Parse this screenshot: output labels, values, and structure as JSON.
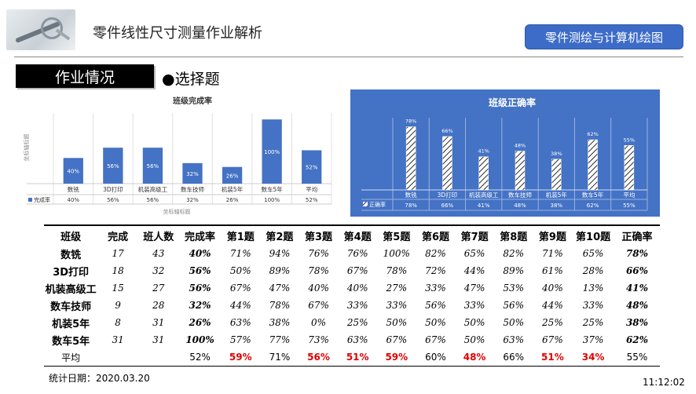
{
  "header": {
    "title": "零件线性尺寸测量作业解析",
    "brand": "零件测绘与计算机绘图"
  },
  "section": {
    "label": "作业情况",
    "subsection": "●选择题"
  },
  "chart_data": [
    {
      "type": "bar",
      "title": "班级完成率",
      "ylabel": "坐标轴标题",
      "xlabel": "坐标轴标题",
      "legend": "完成率",
      "categories": [
        "数铣",
        "3D打印",
        "机装高级工",
        "数车技师",
        "机装5年",
        "数车5年",
        "平均"
      ],
      "values": [
        40,
        56,
        56,
        32,
        26,
        100,
        52
      ],
      "labels": [
        "40%",
        "56%",
        "56%",
        "32%",
        "26%",
        "100%",
        "52%"
      ],
      "ylim": [
        0,
        110
      ],
      "bar_color": "#4472c4"
    },
    {
      "type": "bar",
      "title": "班级正确率",
      "legend": "正确率",
      "categories": [
        "数铣",
        "3D打印",
        "机装高级工",
        "数车技师",
        "机装5年",
        "数车5年",
        "平均"
      ],
      "values": [
        78,
        66,
        41,
        48,
        38,
        62,
        55
      ],
      "labels": [
        "78%",
        "66%",
        "41%",
        "48%",
        "38%",
        "62%",
        "55%"
      ],
      "ylim": [
        0,
        95
      ],
      "background": "#4472c4"
    }
  ],
  "table": {
    "headers": [
      "班级",
      "完成",
      "班人数",
      "完成率",
      "第1题",
      "第2题",
      "第3题",
      "第4题",
      "第5题",
      "第6题",
      "第7题",
      "第8题",
      "第9题",
      "第10题",
      "正确率"
    ],
    "rows": [
      [
        "数铣",
        "17",
        "43",
        "40%",
        "71%",
        "94%",
        "76%",
        "76%",
        "100%",
        "82%",
        "65%",
        "82%",
        "71%",
        "65%",
        "78%"
      ],
      [
        "3D打印",
        "18",
        "32",
        "56%",
        "50%",
        "89%",
        "78%",
        "67%",
        "78%",
        "72%",
        "44%",
        "89%",
        "61%",
        "28%",
        "66%"
      ],
      [
        "机装高级工",
        "15",
        "27",
        "56%",
        "67%",
        "47%",
        "40%",
        "40%",
        "27%",
        "33%",
        "47%",
        "53%",
        "40%",
        "13%",
        "41%"
      ],
      [
        "数车技师",
        "9",
        "28",
        "32%",
        "44%",
        "78%",
        "67%",
        "33%",
        "33%",
        "56%",
        "33%",
        "56%",
        "44%",
        "33%",
        "48%"
      ],
      [
        "机装5年",
        "8",
        "31",
        "26%",
        "63%",
        "38%",
        "0%",
        "25%",
        "50%",
        "50%",
        "50%",
        "50%",
        "25%",
        "25%",
        "38%"
      ],
      [
        "数车5年",
        "31",
        "31",
        "100%",
        "57%",
        "77%",
        "73%",
        "63%",
        "67%",
        "67%",
        "50%",
        "63%",
        "67%",
        "37%",
        "62%"
      ]
    ],
    "average": [
      "平均",
      "",
      "",
      "52%",
      "59%",
      "71%",
      "56%",
      "51%",
      "59%",
      "60%",
      "48%",
      "66%",
      "51%",
      "34%",
      "55%"
    ],
    "average_red": [
      4,
      6,
      7,
      8,
      10,
      12,
      13
    ]
  },
  "footer": {
    "date": "统计日期：2020.03.20",
    "clock": "11:12:02"
  },
  "colors": {
    "accent": "#3d6cc8",
    "bar": "#4472c4",
    "highlight_red": "#e00000"
  }
}
